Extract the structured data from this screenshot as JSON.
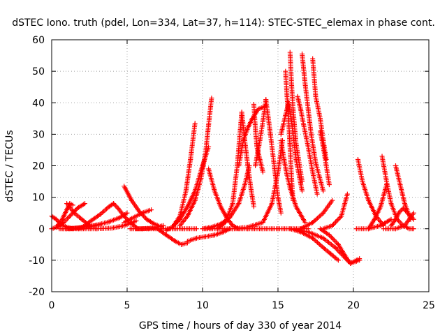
{
  "chart_data": {
    "type": "scatter",
    "title": "dSTEC Iono. truth (pdel, Lon=334, Lat=37, h=114): STEC-STEC_elemax in phase cont.",
    "xlabel": "GPS time / hours of day 330 of year 2014",
    "ylabel": "dSTEC  / TECUs",
    "xlim": [
      0,
      25
    ],
    "ylim": [
      -20,
      60
    ],
    "xticks": [
      0,
      5,
      10,
      15,
      20,
      25
    ],
    "yticks": [
      -20,
      -10,
      0,
      10,
      20,
      30,
      40,
      50,
      60
    ],
    "grid": true,
    "marker": "+",
    "color": "#ff0000",
    "series": [
      {
        "x": [
          0.0,
          0.3,
          0.6,
          1.0,
          1.4
        ],
        "y": [
          4,
          3,
          1.5,
          0.5,
          0
        ]
      },
      {
        "x": [
          0.0,
          0.4,
          0.8,
          1.2,
          1.7,
          2.2
        ],
        "y": [
          0,
          0.6,
          2,
          4,
          6.5,
          8
        ]
      },
      {
        "x": [
          0.3,
          0.7,
          1.0,
          1.2,
          1.4
        ],
        "y": [
          0.5,
          3,
          6,
          8,
          7.5
        ]
      },
      {
        "x": [
          1.0,
          1.5,
          2.0,
          2.5
        ],
        "y": [
          8,
          5,
          3,
          1
        ]
      },
      {
        "x": [
          1.8,
          2.2,
          2.6,
          3.2,
          3.8,
          4.1
        ],
        "y": [
          0,
          1,
          2.5,
          4.5,
          7,
          8
        ]
      },
      {
        "x": [
          4.1,
          4.4,
          4.8,
          5.2,
          5.6
        ],
        "y": [
          8,
          6.5,
          4,
          2,
          0.5
        ]
      },
      {
        "x": [
          0.5,
          1.2,
          2.0,
          3.0,
          3.8,
          4.5,
          5.0
        ],
        "y": [
          0,
          0,
          0.4,
          1.2,
          2.2,
          3.5,
          5
        ]
      },
      {
        "x": [
          1.0,
          2.0,
          3.0,
          4.0,
          4.8,
          5.6
        ],
        "y": [
          0,
          0,
          0,
          0.2,
          1,
          2.5
        ]
      },
      {
        "x": [
          0.8,
          1.6,
          2.4,
          3.2
        ],
        "y": [
          0,
          0.2,
          0.6,
          1.2
        ]
      },
      {
        "x": [
          4.8,
          5.4,
          6.0,
          6.6
        ],
        "y": [
          2,
          3.5,
          5,
          6
        ]
      },
      {
        "x": [
          4.8,
          5.3,
          5.8,
          6.3,
          6.8,
          7.3
        ],
        "y": [
          13.5,
          9,
          5.5,
          3,
          1.5,
          0.5
        ]
      },
      {
        "x": [
          5.2,
          6.0,
          6.8,
          7.4
        ],
        "y": [
          0,
          0,
          0.3,
          1
        ]
      },
      {
        "x": [
          7.0,
          7.6,
          8.2,
          8.6,
          9.0
        ],
        "y": [
          0,
          -2,
          -4,
          -5,
          -4.5
        ]
      },
      {
        "x": [
          9.0,
          9.6,
          10.2,
          10.8,
          11.4,
          11.8
        ],
        "y": [
          -4,
          -3,
          -2.5,
          -2,
          -1,
          0
        ]
      },
      {
        "x": [
          7.6,
          8.0,
          8.5,
          9.0,
          9.5,
          10.0,
          10.4
        ],
        "y": [
          -0.5,
          0.5,
          3,
          7,
          12,
          20,
          26
        ]
      },
      {
        "x": [
          8.0,
          8.5,
          8.9,
          9.2,
          9.5
        ],
        "y": [
          0.5,
          4,
          12,
          22,
          33.5
        ]
      },
      {
        "x": [
          8.5,
          9.0,
          9.5,
          9.9,
          10.2,
          10.4,
          10.6
        ],
        "y": [
          1,
          4,
          9,
          16,
          24,
          33,
          41.5
        ]
      },
      {
        "x": [
          10.4,
          10.8,
          11.2,
          11.6,
          12.0,
          12.4
        ],
        "y": [
          19,
          12,
          7,
          3.5,
          1,
          0
        ]
      },
      {
        "x": [
          11.0,
          11.5,
          12.0,
          12.3,
          12.6
        ],
        "y": [
          0,
          2,
          8,
          20,
          37
        ]
      },
      {
        "x": [
          10.0,
          10.6,
          11.2,
          11.8,
          12.4,
          12.8,
          13.1
        ],
        "y": [
          0,
          0.5,
          1.5,
          3.5,
          8,
          14,
          20
        ]
      },
      {
        "x": [
          12.6,
          12.8,
          13.0,
          13.2,
          13.4
        ],
        "y": [
          37,
          28,
          20,
          13,
          7
        ]
      },
      {
        "x": [
          12.4,
          12.7,
          13.0,
          13.3,
          13.7,
          14.2
        ],
        "y": [
          20,
          28,
          32,
          35,
          38,
          39
        ]
      },
      {
        "x": [
          13.4,
          13.5,
          13.6,
          13.8,
          14.0
        ],
        "y": [
          39.5,
          32,
          26,
          22,
          18
        ]
      },
      {
        "x": [
          13.5,
          13.8,
          14.0,
          14.2
        ],
        "y": [
          20,
          28,
          34,
          41
        ]
      },
      {
        "x": [
          14.2,
          14.5,
          14.8,
          15.0,
          15.2
        ],
        "y": [
          41,
          30,
          18,
          10,
          5
        ]
      },
      {
        "x": [
          12.0,
          13.0,
          14.0,
          14.6,
          15.0,
          15.3
        ],
        "y": [
          0,
          0.5,
          2,
          8,
          18,
          28
        ]
      },
      {
        "x": [
          15.2,
          15.4,
          15.6,
          15.8,
          16.2,
          16.8
        ],
        "y": [
          28,
          22,
          17,
          13,
          7,
          2
        ]
      },
      {
        "x": [
          15.5,
          15.6,
          15.7,
          15.8,
          15.9,
          16.0
        ],
        "y": [
          50,
          42,
          35,
          26,
          16,
          9
        ]
      },
      {
        "x": [
          15.8,
          15.9,
          16.0,
          16.2,
          16.6
        ],
        "y": [
          56,
          46,
          38,
          27,
          15
        ]
      },
      {
        "x": [
          15.2,
          15.5,
          15.7,
          15.9,
          16.2,
          16.6
        ],
        "y": [
          30,
          36,
          40,
          34,
          22,
          12
        ]
      },
      {
        "x": [
          16.3,
          16.5,
          16.7,
          17.0,
          17.3,
          17.6
        ],
        "y": [
          42,
          38,
          33,
          26,
          18,
          11
        ]
      },
      {
        "x": [
          16.6,
          16.8,
          17.0,
          17.2,
          17.5,
          18.0
        ],
        "y": [
          55.5,
          46,
          38,
          30,
          21,
          12
        ]
      },
      {
        "x": [
          17.3,
          17.5,
          17.8,
          18.0,
          18.2
        ],
        "y": [
          54,
          42,
          35,
          28,
          22
        ]
      },
      {
        "x": [
          17.8,
          18.0,
          18.2,
          18.4
        ],
        "y": [
          31,
          26,
          20,
          14
        ]
      },
      {
        "x": [
          15.8,
          16.5,
          17.3,
          18.0,
          18.5,
          19.0
        ],
        "y": [
          0,
          -1,
          -3,
          -6,
          -8,
          -10
        ]
      },
      {
        "x": [
          16.0,
          17.0,
          18.0,
          18.8,
          19.4,
          19.8,
          20.4
        ],
        "y": [
          0,
          -1,
          -3,
          -6,
          -9,
          -11,
          -9.5
        ]
      },
      {
        "x": [
          17.8,
          18.4,
          19.0,
          19.5,
          19.8,
          20.4
        ],
        "y": [
          0,
          -2,
          -5,
          -9,
          -11,
          -10
        ]
      },
      {
        "x": [
          18.0,
          18.6,
          19.2,
          19.6
        ],
        "y": [
          0,
          1,
          4,
          11
        ]
      },
      {
        "x": [
          16.5,
          17.3,
          18.0,
          18.6
        ],
        "y": [
          0,
          2,
          5,
          9
        ]
      },
      {
        "x": [
          20.3,
          20.6,
          21.0,
          21.5,
          22.0
        ],
        "y": [
          22,
          15,
          9,
          4,
          1
        ]
      },
      {
        "x": [
          20.2,
          21.0,
          21.8,
          22.5
        ],
        "y": [
          0,
          0,
          1,
          3
        ]
      },
      {
        "x": [
          21.0,
          21.4,
          21.8,
          22.2
        ],
        "y": [
          0,
          3,
          7,
          14
        ]
      },
      {
        "x": [
          21.9,
          22.2,
          22.5,
          22.9,
          23.3,
          23.7,
          24.0
        ],
        "y": [
          23,
          15,
          8,
          3,
          1,
          0,
          0
        ]
      },
      {
        "x": [
          22.5,
          22.8,
          23.0,
          23.3,
          23.6,
          24.0
        ],
        "y": [
          1,
          3,
          5,
          6.5,
          5,
          3
        ]
      },
      {
        "x": [
          22.8,
          23.1,
          23.4,
          23.8
        ],
        "y": [
          20,
          14,
          8,
          3
        ]
      },
      {
        "x": [
          22.0,
          22.8,
          23.4,
          24.0
        ],
        "y": [
          0,
          0,
          1,
          5
        ]
      },
      {
        "x": [
          10.0,
          11.0,
          12.0,
          13.0,
          14.0,
          15.0,
          16.0,
          17.0
        ],
        "y": [
          0,
          0,
          0,
          0,
          0,
          0,
          0,
          0
        ]
      },
      {
        "x": [
          5.6,
          6.4,
          7.2,
          8.0,
          8.8,
          9.6
        ],
        "y": [
          0,
          0,
          0,
          0,
          0,
          0
        ]
      }
    ]
  }
}
